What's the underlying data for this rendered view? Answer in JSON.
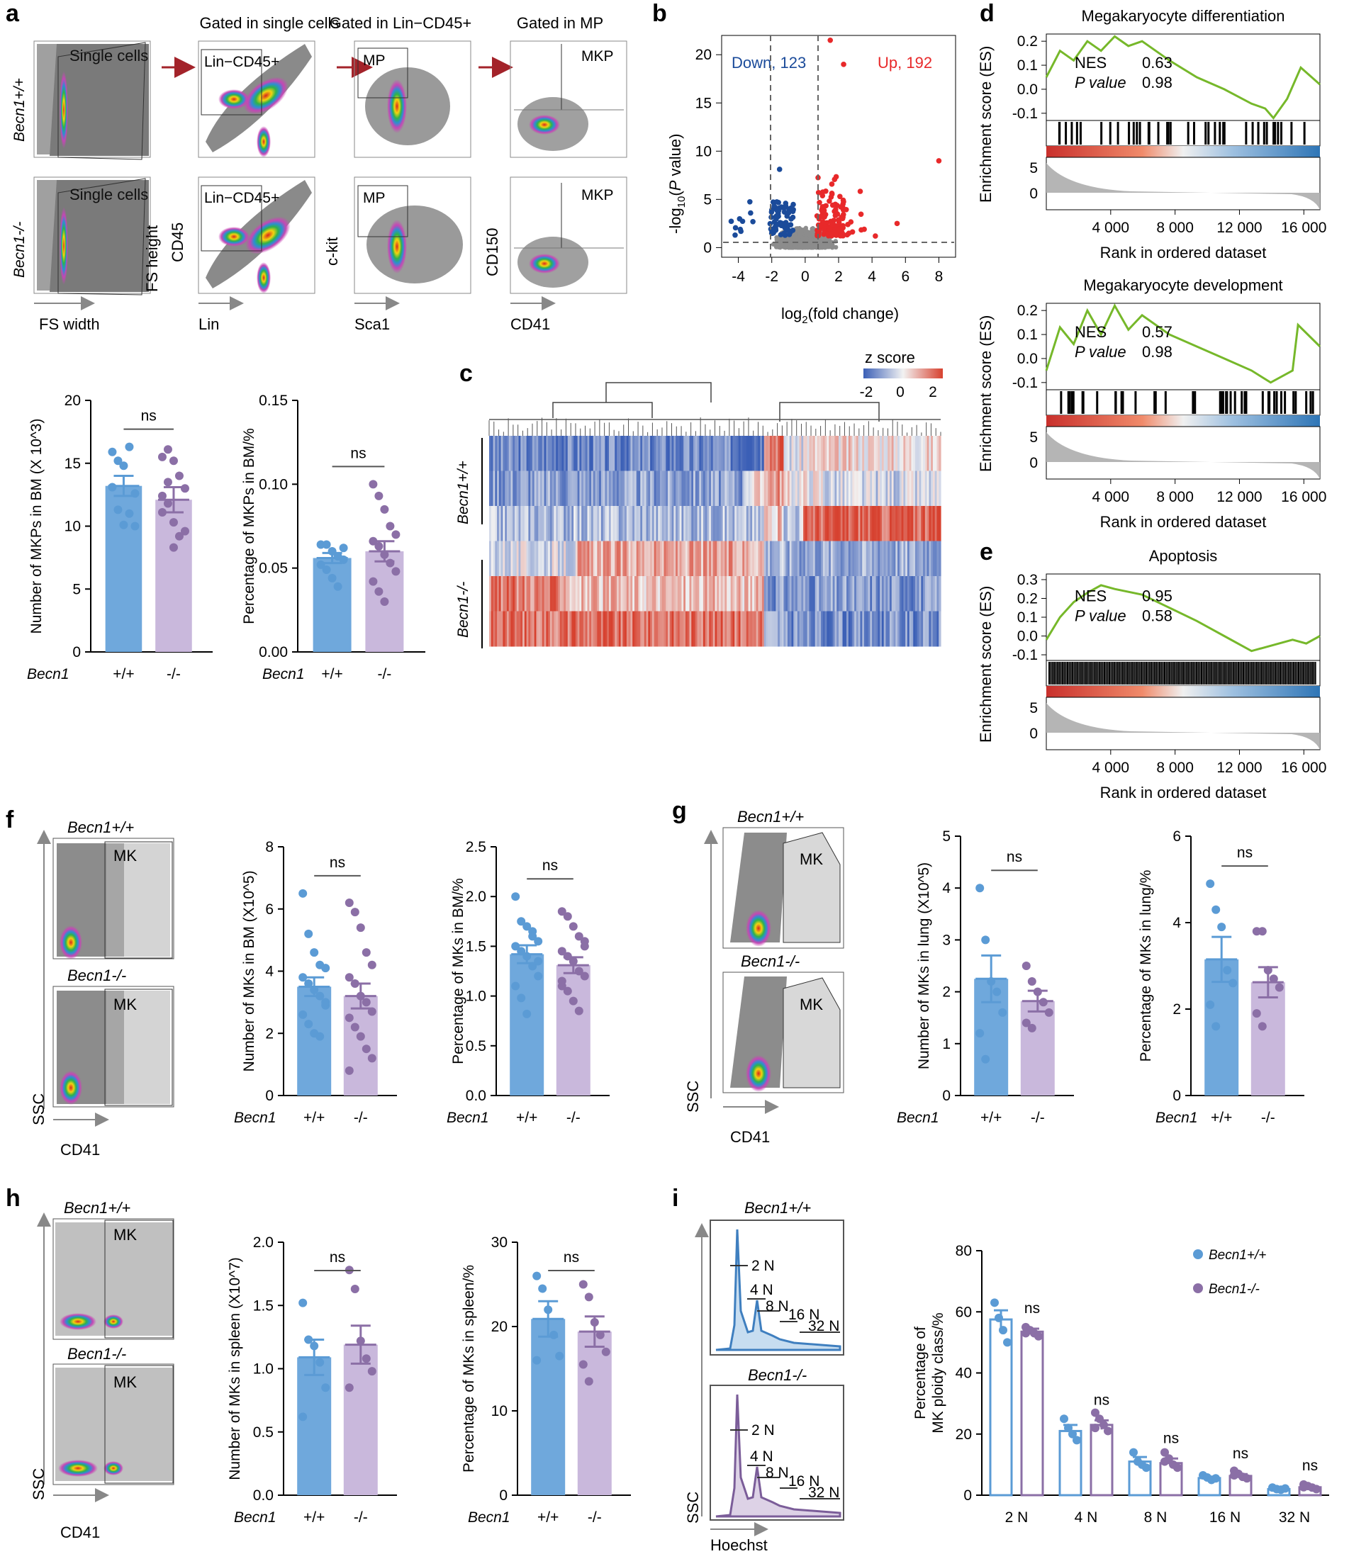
{
  "panel_letters": [
    "a",
    "b",
    "c",
    "d",
    "e",
    "f",
    "g",
    "h",
    "i"
  ],
  "colors": {
    "wt": "#5b9bd5",
    "ko": "#8b6fa6",
    "wt_bar": "#6fa8dc",
    "ko_bar": "#c9b8dc",
    "up": "#e8292a",
    "down": "#1b4b9a",
    "gsea_line": "#76b82a",
    "gate": "#555555",
    "arrow": "#a3232a"
  },
  "genotypes": {
    "wt": "Becn1+/+",
    "ko": "Becn1-/-",
    "gene": "Becn1"
  },
  "panel_a": {
    "headers": [
      "Gated in single cells",
      "Gated in Lin−CD45+",
      "Gated in MP"
    ],
    "gates": [
      "Single cells",
      "Lin−CD45+",
      "MP",
      "MKP"
    ],
    "x_axes": [
      "FS width",
      "Lin",
      "Sca1",
      "CD41"
    ],
    "y_axes": [
      "FS height",
      "CD45",
      "c-kit",
      "CD150"
    ]
  },
  "panel_b": {
    "down_label": "Down, 123",
    "up_label": "Up, 192",
    "xlabel": "log2(fold change)",
    "ylabel": "-log10(P value)",
    "xticks": [
      "-4",
      "-2",
      "0",
      "2",
      "4",
      "6",
      "8"
    ],
    "yticks": [
      "0",
      "5",
      "10",
      "15",
      "20"
    ]
  },
  "panel_c": {
    "legend_title": "z score",
    "legend_ticks": [
      "-2",
      "0",
      "2"
    ],
    "row_labels": [
      "Becn1+/+",
      "Becn1-/-"
    ]
  },
  "gsea": [
    {
      "title": "Megakaryocyte differentiation",
      "nes": "0.63",
      "p": "0.98",
      "nes_label": "NES",
      "p_label": "P value"
    },
    {
      "title": "Megakaryocyte development",
      "nes": "0.57",
      "p": "0.98",
      "nes_label": "NES",
      "p_label": "P value"
    },
    {
      "title": "Apoptosis",
      "nes": "0.95",
      "p": "0.58",
      "nes_label": "NES",
      "p_label": "P value"
    }
  ],
  "gsea_axes": {
    "ylabel": "Enrichment score (ES)",
    "xlabel": "Rank in ordered dataset",
    "xticks": [
      "4 000",
      "8 000",
      "12 000",
      "16 000"
    ]
  },
  "flow_labels": {
    "mk": "MK",
    "ssc": "SSC",
    "cd41": "CD41",
    "hoechst": "Hoechst"
  },
  "ploidy_labels": [
    "2 N",
    "4 N",
    "8 N",
    "16 N",
    "32 N"
  ],
  "chart_data": [
    {
      "id": "a1",
      "type": "bar",
      "ylabel": "Number of MKPs in BM (X 10^3)",
      "ylim": [
        0,
        20
      ],
      "yticks": [
        0,
        5,
        10,
        15,
        20
      ],
      "categories": [
        "+/+",
        "-/-"
      ],
      "values": [
        13.2,
        12.1
      ],
      "sem": [
        0.8,
        1.0
      ],
      "sig": "ns",
      "points": [
        [
          15.9,
          15.2,
          14.8,
          16.3,
          12.6,
          13.1,
          11.3,
          10.1,
          11.0,
          10.0
        ],
        [
          15.5,
          16.1,
          15.2,
          14.0,
          13.0,
          12.4,
          11.8,
          10.3,
          9.2,
          9.6,
          11.1,
          13.5,
          8.3
        ]
      ]
    },
    {
      "id": "a2",
      "type": "bar",
      "ylabel": "Percentage of MKPs in BM/%",
      "ylim": [
        0,
        0.15
      ],
      "yticks": [
        0.0,
        0.05,
        0.1,
        0.15
      ],
      "categories": [
        "+/+",
        "-/-"
      ],
      "values": [
        0.056,
        0.06
      ],
      "sem": [
        0.003,
        0.006
      ],
      "sig": "ns",
      "points": [
        [
          0.064,
          0.064,
          0.06,
          0.057,
          0.055,
          0.052,
          0.049,
          0.044,
          0.039,
          0.062
        ],
        [
          0.1,
          0.093,
          0.085,
          0.075,
          0.07,
          0.066,
          0.063,
          0.058,
          0.053,
          0.048,
          0.042,
          0.036,
          0.03
        ]
      ]
    },
    {
      "id": "f1",
      "type": "bar",
      "ylabel": "Number of MKs in BM (X10^5)",
      "ylim": [
        0,
        8
      ],
      "yticks": [
        0,
        2,
        4,
        6,
        8
      ],
      "categories": [
        "+/+",
        "-/-"
      ],
      "values": [
        3.5,
        3.2
      ],
      "sem": [
        0.3,
        0.4
      ],
      "sig": "ns",
      "points": [
        [
          6.5,
          5.2,
          4.6,
          4.2,
          4.1,
          3.8,
          3.6,
          3.4,
          3.2,
          2.9,
          2.6,
          2.3,
          2.0,
          1.9,
          3.0
        ],
        [
          6.2,
          5.9,
          5.4,
          4.6,
          4.2,
          3.8,
          3.6,
          3.2,
          3.0,
          2.7,
          2.5,
          2.2,
          1.9,
          1.5,
          1.2,
          0.8
        ]
      ]
    },
    {
      "id": "f2",
      "type": "bar",
      "ylabel": "Percentage of MKs in BM/%",
      "ylim": [
        0,
        2.5
      ],
      "yticks": [
        0.0,
        0.5,
        1.0,
        1.5,
        2.0,
        2.5
      ],
      "categories": [
        "+/+",
        "-/-"
      ],
      "values": [
        1.42,
        1.31
      ],
      "sem": [
        0.09,
        0.08
      ],
      "sig": "ns",
      "points": [
        [
          2.0,
          1.75,
          1.7,
          1.65,
          1.55,
          1.5,
          1.45,
          1.4,
          1.3,
          1.2,
          1.1,
          0.98,
          0.82,
          1.6,
          1.35
        ],
        [
          1.85,
          1.8,
          1.7,
          1.6,
          1.55,
          1.45,
          1.4,
          1.35,
          1.25,
          1.2,
          1.15,
          1.05,
          0.95,
          0.85,
          1.5,
          1.1
        ]
      ]
    },
    {
      "id": "g1",
      "type": "bar",
      "ylabel": "Number of MKs in lung (X10^5)",
      "ylim": [
        0,
        5
      ],
      "yticks": [
        0,
        1,
        2,
        3,
        4,
        5
      ],
      "categories": [
        "+/+",
        "-/-"
      ],
      "values": [
        2.25,
        1.82
      ],
      "sem": [
        0.45,
        0.2
      ],
      "sig": "ns",
      "points": [
        [
          4.0,
          3.0,
          2.2,
          2.0,
          1.6,
          1.2,
          0.7
        ],
        [
          2.5,
          2.2,
          2.0,
          1.8,
          1.6,
          1.4,
          1.3
        ]
      ]
    },
    {
      "id": "g2",
      "type": "bar",
      "ylabel": "Percentage of MKs in lung/%",
      "ylim": [
        0,
        6
      ],
      "yticks": [
        0,
        2,
        4,
        6
      ],
      "categories": [
        "+/+",
        "-/-"
      ],
      "values": [
        3.15,
        2.62
      ],
      "sem": [
        0.52,
        0.35
      ],
      "sig": "ns",
      "points": [
        [
          4.9,
          4.3,
          3.9,
          2.9,
          2.6,
          2.1,
          1.6
        ],
        [
          3.8,
          3.8,
          2.9,
          2.7,
          2.5,
          1.9,
          1.6
        ]
      ]
    },
    {
      "id": "h1",
      "type": "bar",
      "ylabel": "Number of MKs in spleen (X10^7)",
      "ylim": [
        0,
        2.0
      ],
      "yticks": [
        0.0,
        0.5,
        1.0,
        1.5,
        2.0
      ],
      "categories": [
        "+/+",
        "-/-"
      ],
      "values": [
        1.09,
        1.19
      ],
      "sem": [
        0.14,
        0.15
      ],
      "sig": "ns",
      "points": [
        [
          1.52,
          1.23,
          1.18,
          1.05,
          0.85,
          0.62
        ],
        [
          1.78,
          1.63,
          1.22,
          1.08,
          0.98,
          0.85
        ]
      ]
    },
    {
      "id": "h2",
      "type": "bar",
      "ylabel": "Percentage of MKs in spleen/%",
      "ylim": [
        0,
        30
      ],
      "yticks": [
        0,
        10,
        20,
        30
      ],
      "categories": [
        "+/+",
        "-/-"
      ],
      "values": [
        20.9,
        19.4
      ],
      "sem": [
        2.1,
        1.8
      ],
      "sig": "ns",
      "points": [
        [
          26.0,
          24.5,
          22.0,
          19.0,
          16.5,
          16.0
        ],
        [
          25.0,
          23.5,
          20.5,
          19.0,
          17.0,
          15.5,
          13.5
        ]
      ]
    },
    {
      "id": "i",
      "type": "bar",
      "ylabel": "Percentage of MK ploidy class/%",
      "ylim": [
        0,
        80
      ],
      "yticks": [
        0,
        20,
        40,
        60,
        80
      ],
      "categories": [
        "2 N",
        "4 N",
        "8 N",
        "16 N",
        "32 N"
      ],
      "series": [
        {
          "name": "Becn1+/+",
          "values": [
            57.5,
            21.0,
            11.0,
            5.6,
            2.0
          ],
          "sem": [
            3.0,
            2.0,
            1.5,
            0.5,
            0.3
          ]
        },
        {
          "name": "Becn1-/-",
          "values": [
            53.5,
            23.0,
            10.5,
            6.3,
            2.6
          ],
          "sem": [
            1.0,
            1.5,
            1.5,
            0.6,
            0.4
          ]
        }
      ],
      "sig": [
        "ns",
        "ns",
        "ns",
        "ns",
        "ns"
      ],
      "points": [
        [
          [
            63,
            58,
            54,
            50
          ],
          [
            25,
            22,
            20,
            18
          ],
          [
            14,
            11,
            10,
            9
          ],
          [
            6.5,
            5.8,
            5.0,
            5.5
          ],
          [
            2.5,
            2.0,
            1.8,
            2.2
          ]
        ],
        [
          [
            55,
            54,
            53,
            52,
            53
          ],
          [
            27,
            25,
            23,
            21,
            22
          ],
          [
            14,
            12,
            10,
            9,
            11
          ],
          [
            8,
            7,
            6,
            5.5,
            6.5
          ],
          [
            3.5,
            3.0,
            2.5,
            2.0,
            2.6
          ]
        ]
      ]
    }
  ]
}
